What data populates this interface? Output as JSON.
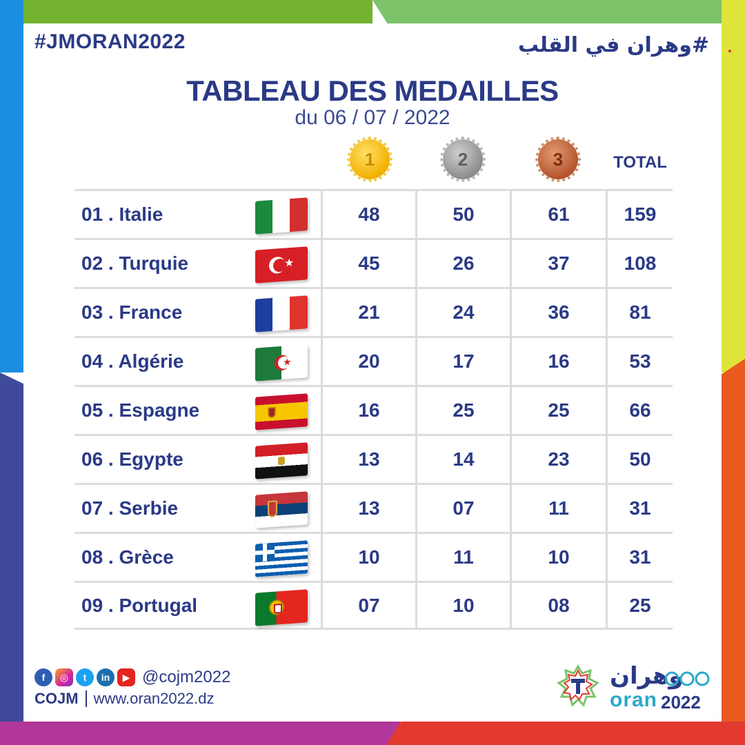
{
  "header": {
    "hashtag": "#JMORAN2022",
    "arabic_hashtag": "#وهران في القلب",
    "title": "TABLEAU DES MEDAILLES",
    "subtitle": "du 06 / 07 / 2022"
  },
  "columns": {
    "gold": "1",
    "silver": "2",
    "bronze": "3",
    "total": "TOTAL"
  },
  "colors": {
    "primary_text": "#2b3a86",
    "gold": "#f2b000",
    "silver": "#8d8d8d",
    "bronze": "#b4552c",
    "grid_line": "#dcdcdc"
  },
  "rows": [
    {
      "country": "01 . Italie",
      "flag": "italy-flag",
      "gold": "48",
      "silver": "50",
      "bronze": "61",
      "total": "159"
    },
    {
      "country": "02 . Turquie",
      "flag": "turkey-flag",
      "gold": "45",
      "silver": "26",
      "bronze": "37",
      "total": "108"
    },
    {
      "country": "03 . France",
      "flag": "france-flag",
      "gold": "21",
      "silver": "24",
      "bronze": "36",
      "total": "81"
    },
    {
      "country": "04 . Algérie",
      "flag": "algeria-flag",
      "gold": "20",
      "silver": "17",
      "bronze": "16",
      "total": "53"
    },
    {
      "country": "05 . Espagne",
      "flag": "spain-flag",
      "gold": "16",
      "silver": "25",
      "bronze": "25",
      "total": "66"
    },
    {
      "country": "06 . Egypte",
      "flag": "egypt-flag",
      "gold": "13",
      "silver": "14",
      "bronze": "23",
      "total": "50"
    },
    {
      "country": "07 . Serbie",
      "flag": "serbia-flag",
      "gold": "13",
      "silver": "07",
      "bronze": "11",
      "total": "31"
    },
    {
      "country": "08 . Grèce",
      "flag": "greece-flag",
      "gold": "10",
      "silver": "11",
      "bronze": "10",
      "total": "31"
    },
    {
      "country": "09 . Portugal",
      "flag": "portugal-flag",
      "gold": "07",
      "silver": "10",
      "bronze": "08",
      "total": "25"
    }
  ],
  "footer": {
    "social_icons": [
      "facebook-icon",
      "instagram-icon",
      "twitter-icon",
      "linkedin-icon",
      "youtube-icon"
    ],
    "handle": "@cojm2022",
    "org": "COJM",
    "website": "www.oran2022.dz",
    "logo_arabic": "وهران",
    "logo_city": "oran",
    "logo_year": "2022"
  }
}
